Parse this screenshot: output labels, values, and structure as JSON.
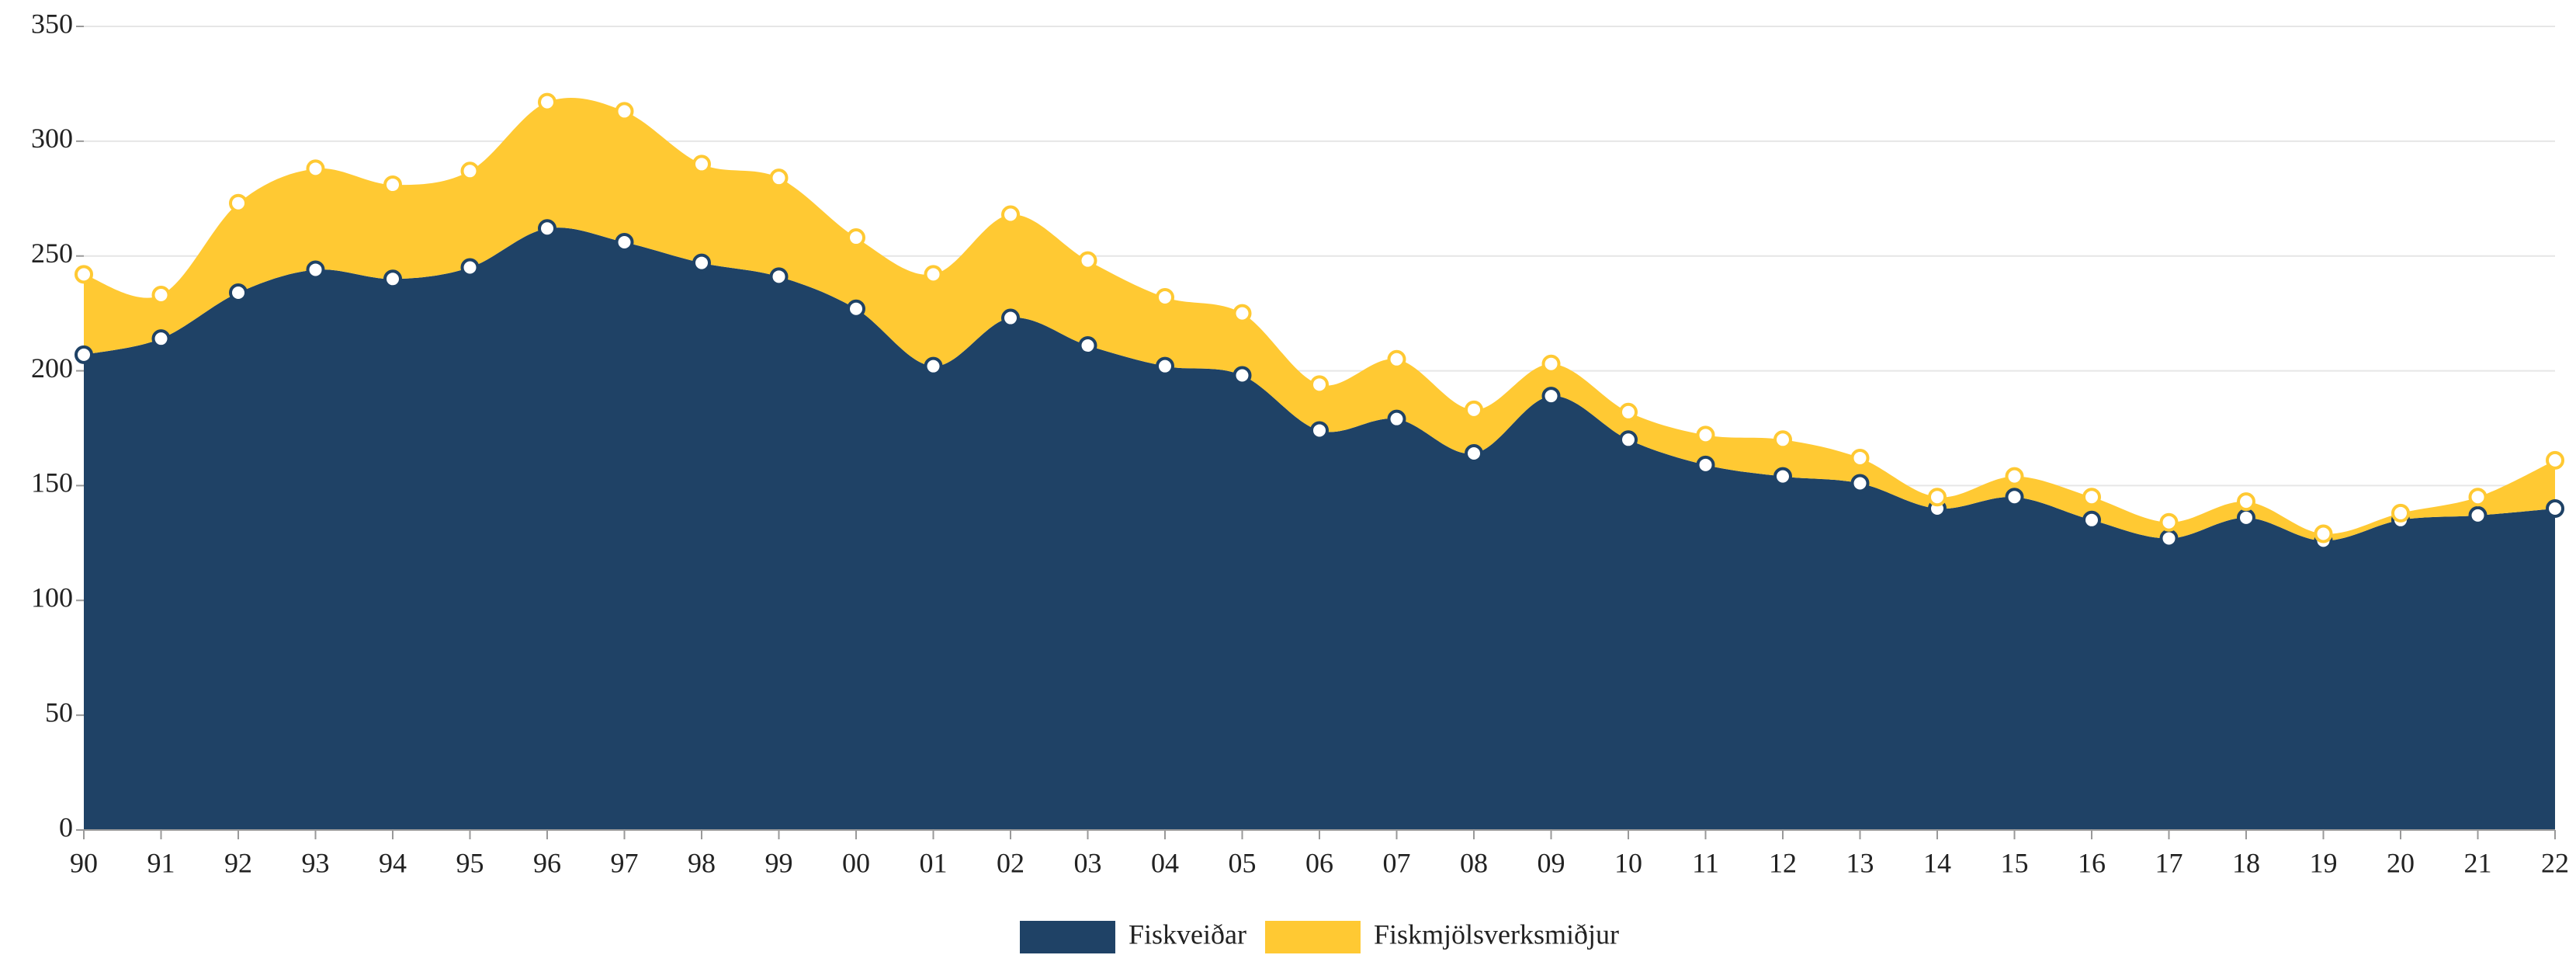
{
  "chart_data": {
    "type": "stacked-area",
    "categories": [
      "90",
      "91",
      "92",
      "93",
      "94",
      "95",
      "96",
      "97",
      "98",
      "99",
      "00",
      "01",
      "02",
      "03",
      "04",
      "05",
      "06",
      "07",
      "08",
      "09",
      "10",
      "11",
      "12",
      "13",
      "14",
      "15",
      "16",
      "17",
      "18",
      "19",
      "20",
      "21",
      "22"
    ],
    "series": [
      {
        "name": "Fiskveiðar",
        "color": "#1f4266",
        "values": [
          207,
          214,
          234,
          244,
          240,
          245,
          262,
          256,
          247,
          241,
          227,
          202,
          223,
          211,
          202,
          198,
          174,
          179,
          164,
          189,
          170,
          159,
          154,
          151,
          140,
          145,
          135,
          127,
          136,
          126,
          135,
          137,
          140
        ]
      },
      {
        "name": "Fiskmjölsverksmiðjur",
        "color": "#ffc933",
        "values": [
          35,
          19,
          39,
          44,
          41,
          42,
          55,
          57,
          43,
          43,
          31,
          40,
          45,
          37,
          30,
          27,
          20,
          26,
          19,
          14,
          12,
          13,
          16,
          11,
          5,
          9,
          10,
          7,
          7,
          3,
          3,
          8,
          21
        ]
      }
    ],
    "ylim": [
      0,
      350
    ],
    "yticks": [
      0,
      50,
      100,
      150,
      200,
      250,
      300,
      350
    ],
    "grid": true,
    "legend": "bottom"
  }
}
